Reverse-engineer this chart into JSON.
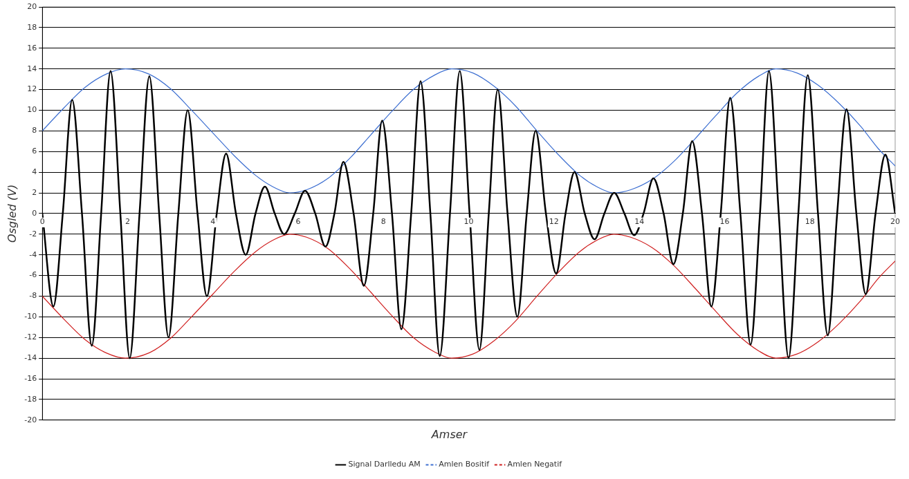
{
  "chart_data": {
    "type": "line",
    "xlabel": "Amser",
    "ylabel": "Osgled (V)",
    "xlim": [
      0,
      20
    ],
    "xticks": [
      0,
      2,
      4,
      6,
      8,
      10,
      12,
      14,
      16,
      18,
      20
    ],
    "ylim": [
      -20,
      20
    ],
    "yticks": [
      -20,
      -18,
      -16,
      -14,
      -12,
      -10,
      -8,
      -6,
      -4,
      -2,
      0,
      2,
      4,
      6,
      8,
      10,
      12,
      14,
      16,
      18,
      20
    ],
    "grid": "y",
    "legend": "bottom",
    "marker": "none",
    "line_style": "solid",
    "series": [
      {
        "name": "Signal Darlledu AM",
        "color": "#000000",
        "x": [
          0,
          0.26,
          0.48,
          0.7,
          0.93,
          1.16,
          1.38,
          1.6,
          1.83,
          2.05,
          2.28,
          2.51,
          2.74,
          2.96,
          3.19,
          3.41,
          3.64,
          3.86,
          4.09,
          4.31,
          4.54,
          4.77,
          5.0,
          5.22,
          5.45,
          5.67,
          5.92,
          6.16,
          6.4,
          6.64,
          6.85,
          7.06,
          7.3,
          7.54,
          7.76,
          7.97,
          8.2,
          8.42,
          8.65,
          8.87,
          9.1,
          9.32,
          9.56,
          9.79,
          10.02,
          10.25,
          10.47,
          10.68,
          10.91,
          11.14,
          11.36,
          11.57,
          11.81,
          12.05,
          12.27,
          12.48,
          12.72,
          12.95,
          13.18,
          13.41,
          13.65,
          13.88,
          14.1,
          14.33,
          14.57,
          14.8,
          15.02,
          15.24,
          15.47,
          15.69,
          15.91,
          16.13,
          16.37,
          16.61,
          16.83,
          17.04,
          17.27,
          17.5,
          17.73,
          17.95,
          18.19,
          18.42,
          18.64,
          18.86,
          19.09,
          19.31,
          19.54,
          19.77,
          20
        ],
        "values": [
          0,
          -9,
          0,
          11,
          0,
          -12.8,
          0,
          13.8,
          0,
          -14,
          0,
          13.3,
          0,
          -12,
          0,
          10,
          0,
          -8,
          0,
          5.8,
          0,
          -4,
          0,
          2.6,
          0,
          -2,
          0,
          2.2,
          0,
          -3.2,
          0,
          5,
          0,
          -7,
          0,
          9,
          0,
          -11.2,
          0,
          12.8,
          0,
          -13.8,
          0,
          13.8,
          0,
          -13.2,
          0,
          12,
          0,
          -10,
          0,
          8,
          0,
          -5.8,
          0,
          4,
          0,
          -2.5,
          0,
          2,
          0,
          -2.1,
          0,
          3.4,
          0,
          -4.9,
          0,
          7,
          0,
          -9,
          0,
          11.2,
          0,
          -12.7,
          0,
          13.8,
          0,
          -14,
          0,
          13.4,
          0,
          -11.8,
          0,
          10.1,
          0,
          -7.8,
          0,
          5.7,
          0
        ]
      },
      {
        "name": "Amlen Bositif",
        "color": "#3d6fd1",
        "x": [
          0,
          0.5,
          1,
          1.5,
          1.95,
          2.5,
          3,
          3.5,
          4,
          4.5,
          5,
          5.4,
          5.8,
          6.2,
          6.7,
          7.2,
          7.7,
          8.2,
          8.7,
          9.2,
          9.6,
          10.1,
          10.6,
          11.1,
          11.6,
          12.1,
          12.6,
          13,
          13.4,
          13.8,
          14.3,
          14.8,
          15.3,
          15.8,
          16.3,
          16.8,
          17.2,
          17.7,
          18.2,
          18.7,
          19.2,
          19.6,
          20
        ],
        "values": [
          8,
          10.2,
          12.2,
          13.5,
          14,
          13.5,
          12.1,
          10,
          7.8,
          5.6,
          3.7,
          2.6,
          2,
          2.3,
          3.4,
          5.3,
          7.6,
          9.9,
          12,
          13.4,
          14,
          13.6,
          12.3,
          10.4,
          8,
          5.7,
          3.7,
          2.6,
          2,
          2.3,
          3.3,
          5,
          7.2,
          9.5,
          11.7,
          13.3,
          14,
          13.6,
          12.4,
          10.6,
          8.4,
          6.3,
          4.6
        ]
      },
      {
        "name": "Amlen Negatif",
        "color": "#d02020",
        "x": [
          0,
          0.5,
          1,
          1.5,
          1.95,
          2.5,
          3,
          3.5,
          4,
          4.5,
          5,
          5.4,
          5.8,
          6.2,
          6.7,
          7.2,
          7.7,
          8.2,
          8.7,
          9.2,
          9.6,
          10.1,
          10.6,
          11.1,
          11.6,
          12.1,
          12.6,
          13,
          13.4,
          13.8,
          14.3,
          14.8,
          15.3,
          15.8,
          16.3,
          16.8,
          17.2,
          17.7,
          18.2,
          18.7,
          19.2,
          19.6,
          20
        ],
        "values": [
          -8,
          -10.2,
          -12.2,
          -13.5,
          -14,
          -13.5,
          -12.1,
          -10,
          -7.8,
          -5.6,
          -3.7,
          -2.6,
          -2,
          -2.3,
          -3.4,
          -5.3,
          -7.6,
          -9.9,
          -12,
          -13.4,
          -14,
          -13.6,
          -12.3,
          -10.4,
          -8,
          -5.7,
          -3.7,
          -2.6,
          -2,
          -2.3,
          -3.3,
          -5,
          -7.2,
          -9.5,
          -11.7,
          -13.3,
          -14,
          -13.6,
          -12.4,
          -10.6,
          -8.4,
          -6.3,
          -4.6
        ]
      }
    ]
  }
}
